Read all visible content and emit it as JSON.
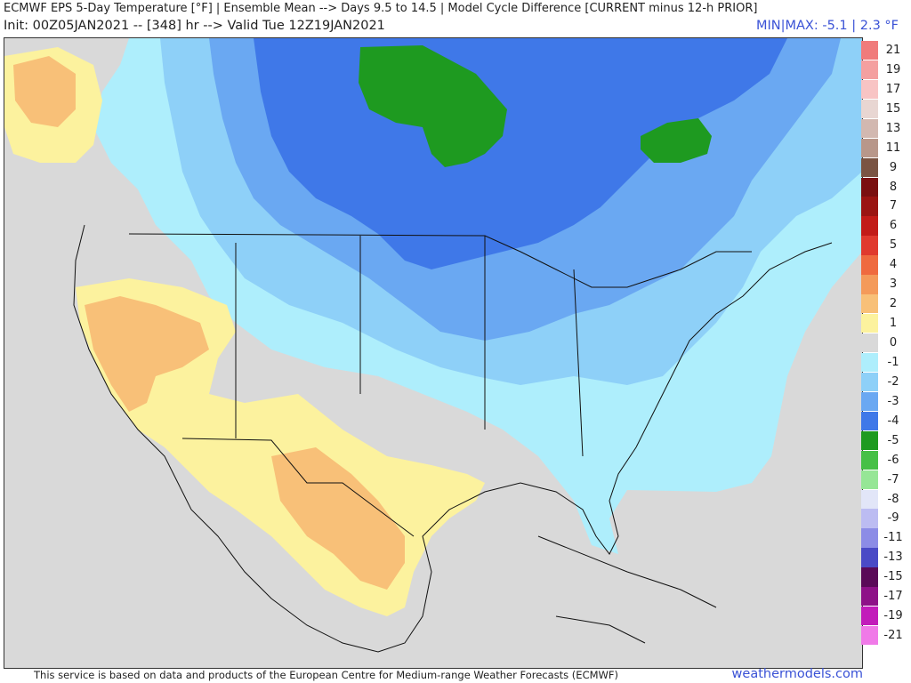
{
  "header": {
    "title_line1": "ECMWF EPS 5-Day Temperature [°F] | Ensemble Mean --> Days 9.5 to 14.5 | Model Cycle Difference [CURRENT minus 12-h PRIOR]",
    "title_line2": "Init: 00Z05JAN2021 -- [348] hr --> Valid Tue 12Z19JAN2021",
    "minmax": "MIN|MAX: -5.1 | 2.3 °F"
  },
  "legend": [
    {
      "label": "21",
      "color": "#f07b7b"
    },
    {
      "label": "19",
      "color": "#f4a0a0"
    },
    {
      "label": "17",
      "color": "#f8c4c4"
    },
    {
      "label": "15",
      "color": "#e8d6d2"
    },
    {
      "label": "13",
      "color": "#d2b8b0"
    },
    {
      "label": "11",
      "color": "#b8978a"
    },
    {
      "label": "9",
      "color": "#7a5443"
    },
    {
      "label": "8",
      "color": "#7a1010"
    },
    {
      "label": "7",
      "color": "#9a1512"
    },
    {
      "label": "6",
      "color": "#c21c18"
    },
    {
      "label": "5",
      "color": "#e03a2e"
    },
    {
      "label": "4",
      "color": "#ef6a3f"
    },
    {
      "label": "3",
      "color": "#f49a5a"
    },
    {
      "label": "2",
      "color": "#f8c078"
    },
    {
      "label": "1",
      "color": "#fcf29e"
    },
    {
      "label": "0",
      "color": "#d9d9d9"
    },
    {
      "label": "-1",
      "color": "#aeeefc"
    },
    {
      "label": "-2",
      "color": "#8ed0f8"
    },
    {
      "label": "-3",
      "color": "#6aa8f2"
    },
    {
      "label": "-4",
      "color": "#3f78e8"
    },
    {
      "label": "-5",
      "color": "#1e9a20"
    },
    {
      "label": "-6",
      "color": "#46c046"
    },
    {
      "label": "-7",
      "color": "#96e696"
    },
    {
      "label": "-8",
      "color": "#e2e6f8"
    },
    {
      "label": "-9",
      "color": "#bcbcf2"
    },
    {
      "label": "-11",
      "color": "#8c8ce6"
    },
    {
      "label": "-13",
      "color": "#4a4ac6"
    },
    {
      "label": "-15",
      "color": "#5a0a58"
    },
    {
      "label": "-17",
      "color": "#8e1288"
    },
    {
      "label": "-19",
      "color": "#c21cba"
    },
    {
      "label": "-21",
      "color": "#f07ae8"
    }
  ],
  "footer": {
    "credit": "This service is based on data and products of the European Centre for Medium-range Weather Forecasts (ECMWF)",
    "brand": "weathermodels.com"
  }
}
